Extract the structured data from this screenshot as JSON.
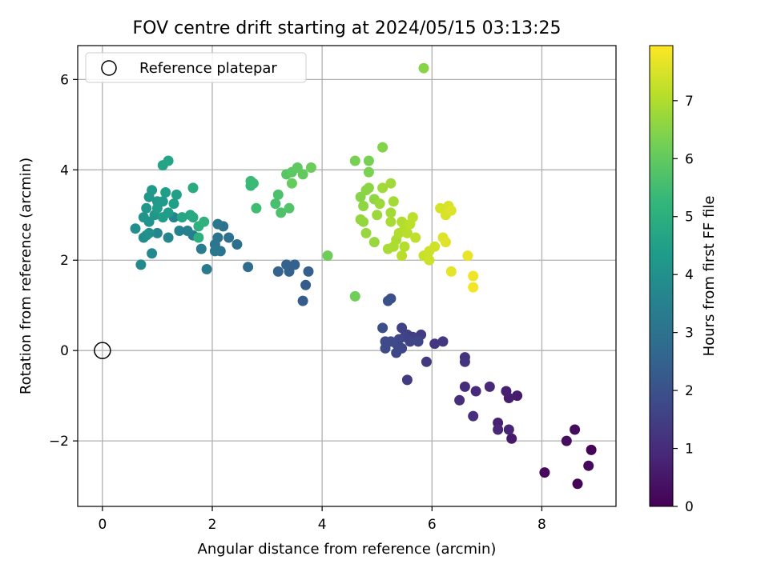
{
  "chart_data": {
    "type": "scatter",
    "title": "FOV centre drift starting at 2024/05/15 03:13:25",
    "xlabel": "Angular distance from reference (arcmin)",
    "ylabel": "Rotation from reference (arcmin)",
    "xlim": [
      -0.45,
      9.35
    ],
    "ylim": [
      -3.45,
      6.75
    ],
    "xticks": [
      0,
      2,
      4,
      6,
      8
    ],
    "yticks": [
      -2,
      0,
      2,
      4,
      6
    ],
    "xtick_labels": [
      "0",
      "2",
      "4",
      "6",
      "8"
    ],
    "ytick_labels": [
      "−2",
      "0",
      "2",
      "4",
      "6"
    ],
    "grid": true,
    "legend_position": "upper-left",
    "reference_point": {
      "label": "Reference platepar",
      "x": 0,
      "y": 0,
      "marker": "hollow-circle",
      "edge_color": "#000000"
    },
    "colorbar": {
      "label": "Hours from first FF file",
      "colormap": "viridis",
      "min": 0,
      "max": 7.95,
      "ticks": [
        0,
        1,
        2,
        3,
        4,
        5,
        6,
        7
      ],
      "tick_labels": [
        "0",
        "1",
        "2",
        "3",
        "4",
        "5",
        "6",
        "7"
      ]
    },
    "colormap_stops": [
      "#440154",
      "#482878",
      "#3e4989",
      "#31688e",
      "#26828e",
      "#1f9e89",
      "#35b779",
      "#6ece58",
      "#b5de2b",
      "#fde725"
    ],
    "columns": [
      "x",
      "y",
      "hours"
    ],
    "points": [
      [
        8.9,
        -2.2,
        0.05
      ],
      [
        8.65,
        -2.95,
        0.1
      ],
      [
        8.05,
        -2.7,
        0.15
      ],
      [
        8.85,
        -2.55,
        0.2
      ],
      [
        8.6,
        -1.75,
        0.25
      ],
      [
        8.45,
        -2.0,
        0.3
      ],
      [
        7.45,
        -1.95,
        0.55
      ],
      [
        7.55,
        -1.0,
        0.6
      ],
      [
        7.4,
        -1.05,
        0.65
      ],
      [
        7.35,
        -0.9,
        0.7
      ],
      [
        7.2,
        -1.6,
        0.75
      ],
      [
        7.4,
        -1.75,
        0.8
      ],
      [
        7.2,
        -1.75,
        0.85
      ],
      [
        7.05,
        -0.8,
        0.9
      ],
      [
        6.8,
        -0.9,
        0.95
      ],
      [
        6.6,
        -0.8,
        1.0
      ],
      [
        6.5,
        -1.1,
        1.05
      ],
      [
        6.75,
        -1.45,
        1.1
      ],
      [
        6.6,
        -0.15,
        1.15
      ],
      [
        6.6,
        -0.25,
        1.2
      ],
      [
        6.05,
        0.15,
        1.25
      ],
      [
        6.2,
        0.2,
        1.3
      ],
      [
        5.9,
        -0.25,
        1.35
      ],
      [
        5.55,
        -0.65,
        1.4
      ],
      [
        5.8,
        0.35,
        1.45
      ],
      [
        5.65,
        0.3,
        1.5
      ],
      [
        5.55,
        0.35,
        1.5
      ],
      [
        5.45,
        0.5,
        1.55
      ],
      [
        5.5,
        0.3,
        1.6
      ],
      [
        5.6,
        0.2,
        1.6
      ],
      [
        5.75,
        0.2,
        1.65
      ],
      [
        5.4,
        0.25,
        1.7
      ],
      [
        5.35,
        0.15,
        1.7
      ],
      [
        5.45,
        0.05,
        1.75
      ],
      [
        5.35,
        -0.05,
        1.75
      ],
      [
        5.25,
        0.2,
        1.8
      ],
      [
        5.15,
        0.2,
        1.8
      ],
      [
        5.15,
        0.05,
        1.85
      ],
      [
        5.1,
        0.5,
        1.9
      ],
      [
        5.25,
        1.15,
        1.95
      ],
      [
        5.2,
        1.1,
        2.0
      ],
      [
        3.65,
        1.1,
        2.3
      ],
      [
        3.7,
        1.45,
        2.35
      ],
      [
        3.75,
        1.75,
        2.4
      ],
      [
        3.5,
        1.9,
        2.45
      ],
      [
        3.4,
        1.75,
        2.5
      ],
      [
        3.35,
        1.9,
        2.5
      ],
      [
        3.2,
        1.75,
        2.55
      ],
      [
        2.65,
        1.85,
        2.8
      ],
      [
        2.45,
        2.35,
        2.9
      ],
      [
        2.3,
        2.5,
        2.95
      ],
      [
        2.2,
        2.75,
        3.0
      ],
      [
        2.1,
        2.5,
        3.05
      ],
      [
        2.15,
        2.2,
        3.05
      ],
      [
        2.05,
        2.35,
        3.1
      ],
      [
        2.1,
        2.8,
        3.15
      ],
      [
        2.05,
        2.2,
        3.2
      ],
      [
        1.9,
        1.8,
        3.25
      ],
      [
        1.8,
        2.25,
        3.3
      ],
      [
        1.65,
        2.55,
        3.4
      ],
      [
        1.55,
        2.65,
        3.45
      ],
      [
        1.4,
        2.65,
        3.5
      ],
      [
        1.3,
        2.95,
        3.6
      ],
      [
        1.2,
        2.5,
        3.65
      ],
      [
        1.0,
        2.6,
        3.7
      ],
      [
        0.9,
        2.15,
        3.75
      ],
      [
        0.7,
        1.9,
        3.8
      ],
      [
        0.75,
        2.5,
        3.85
      ],
      [
        0.8,
        2.55,
        3.9
      ],
      [
        0.6,
        2.7,
        3.95
      ],
      [
        0.85,
        2.6,
        4.0
      ],
      [
        0.85,
        2.85,
        4.05
      ],
      [
        0.75,
        2.95,
        4.1
      ],
      [
        0.8,
        3.15,
        4.15
      ],
      [
        0.95,
        3.0,
        4.2
      ],
      [
        1.0,
        3.3,
        4.25
      ],
      [
        1.1,
        3.3,
        4.3
      ],
      [
        1.0,
        3.15,
        4.35
      ],
      [
        1.1,
        2.95,
        4.35
      ],
      [
        1.2,
        3.05,
        4.4
      ],
      [
        1.15,
        3.5,
        4.45
      ],
      [
        1.3,
        3.25,
        4.45
      ],
      [
        1.35,
        3.45,
        4.5
      ],
      [
        1.1,
        4.1,
        4.6
      ],
      [
        1.2,
        4.2,
        4.65
      ],
      [
        1.45,
        2.95,
        4.7
      ],
      [
        1.6,
        3.0,
        4.75
      ],
      [
        1.65,
        2.95,
        4.8
      ],
      [
        1.65,
        3.6,
        4.85
      ],
      [
        0.9,
        3.55,
        4.3
      ],
      [
        0.85,
        3.4,
        4.2
      ],
      [
        1.75,
        2.5,
        5.0
      ],
      [
        1.75,
        2.75,
        5.05
      ],
      [
        1.85,
        2.85,
        5.1
      ],
      [
        2.7,
        3.65,
        5.35
      ],
      [
        2.7,
        3.75,
        5.4
      ],
      [
        2.75,
        3.7,
        5.4
      ],
      [
        2.8,
        3.15,
        5.45
      ],
      [
        3.15,
        3.25,
        5.6
      ],
      [
        3.2,
        3.45,
        5.65
      ],
      [
        3.25,
        3.05,
        5.7
      ],
      [
        3.4,
        3.15,
        5.75
      ],
      [
        3.35,
        3.9,
        5.85
      ],
      [
        3.45,
        3.95,
        5.9
      ],
      [
        3.55,
        4.05,
        5.95
      ],
      [
        3.65,
        3.9,
        6.0
      ],
      [
        3.8,
        4.05,
        6.1
      ],
      [
        3.45,
        3.7,
        6.05
      ],
      [
        4.1,
        2.1,
        6.15
      ],
      [
        4.6,
        1.2,
        6.2
      ],
      [
        4.6,
        4.2,
        6.3
      ],
      [
        4.85,
        4.2,
        6.3
      ],
      [
        4.85,
        3.95,
        6.35
      ],
      [
        5.1,
        4.5,
        6.45
      ],
      [
        5.85,
        6.25,
        6.5
      ],
      [
        4.7,
        3.4,
        6.5
      ],
      [
        4.8,
        3.55,
        6.55
      ],
      [
        4.85,
        3.6,
        6.55
      ],
      [
        4.95,
        3.35,
        6.6
      ],
      [
        4.75,
        3.2,
        6.6
      ],
      [
        4.7,
        2.9,
        6.65
      ],
      [
        4.75,
        2.85,
        6.65
      ],
      [
        4.8,
        2.6,
        6.7
      ],
      [
        4.95,
        2.4,
        6.7
      ],
      [
        5.0,
        3.0,
        6.75
      ],
      [
        5.05,
        3.25,
        6.75
      ],
      [
        5.1,
        3.6,
        6.8
      ],
      [
        5.25,
        3.7,
        6.8
      ],
      [
        5.25,
        3.05,
        6.85
      ],
      [
        5.3,
        3.3,
        6.85
      ],
      [
        5.25,
        2.85,
        6.9
      ],
      [
        5.2,
        2.25,
        6.9
      ],
      [
        5.3,
        2.3,
        6.95
      ],
      [
        5.35,
        2.45,
        6.95
      ],
      [
        5.4,
        2.6,
        7.0
      ],
      [
        5.45,
        2.85,
        7.0
      ],
      [
        5.5,
        2.7,
        7.05
      ],
      [
        5.5,
        2.3,
        7.05
      ],
      [
        5.55,
        2.6,
        7.1
      ],
      [
        5.45,
        2.1,
        7.1
      ],
      [
        5.6,
        2.8,
        7.15
      ],
      [
        5.65,
        2.95,
        7.15
      ],
      [
        5.7,
        2.5,
        7.2
      ],
      [
        5.85,
        2.1,
        7.3
      ],
      [
        5.95,
        2.0,
        7.35
      ],
      [
        5.95,
        2.2,
        7.35
      ],
      [
        6.05,
        2.3,
        7.4
      ],
      [
        6.15,
        3.15,
        7.45
      ],
      [
        6.25,
        3.0,
        7.5
      ],
      [
        6.3,
        3.2,
        7.5
      ],
      [
        6.35,
        3.1,
        7.55
      ],
      [
        6.2,
        2.5,
        7.55
      ],
      [
        6.25,
        2.4,
        7.6
      ],
      [
        6.35,
        1.75,
        7.65
      ],
      [
        6.65,
        2.1,
        7.7
      ],
      [
        6.75,
        1.65,
        7.75
      ],
      [
        6.75,
        1.4,
        7.8
      ]
    ]
  }
}
